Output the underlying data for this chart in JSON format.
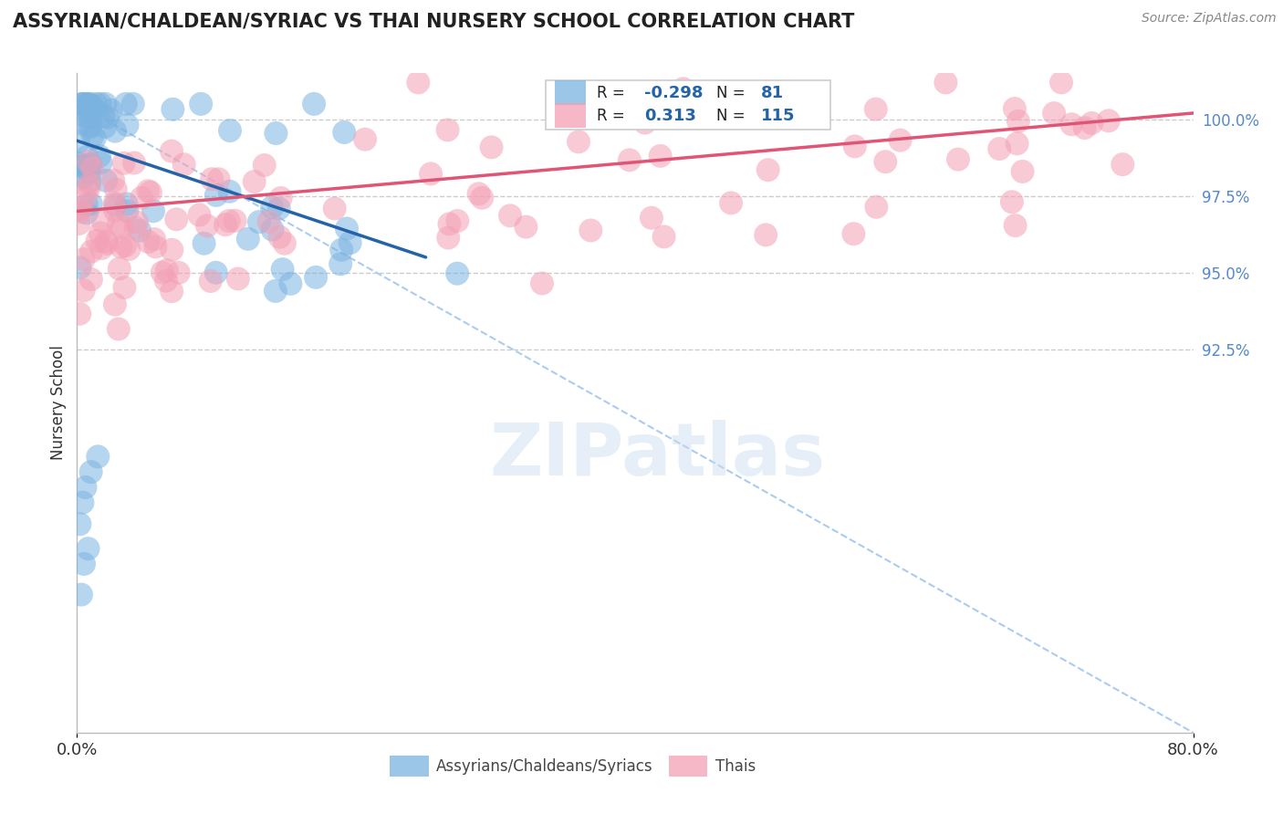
{
  "title": "ASSYRIAN/CHALDEAN/SYRIAC VS THAI NURSERY SCHOOL CORRELATION CHART",
  "source": "Source: ZipAtlas.com",
  "ylabel": "Nursery School",
  "xlim": [
    0.0,
    80.0
  ],
  "ylim": [
    80.0,
    101.5
  ],
  "blue_R": -0.298,
  "blue_N": 81,
  "pink_R": 0.313,
  "pink_N": 115,
  "blue_color": "#7ab3e0",
  "pink_color": "#f4a0b5",
  "blue_line_color": "#2563a8",
  "pink_line_color": "#e05575",
  "gray_line_color": "#aaccee",
  "legend_label_blue": "Assyrians/Chaldeans/Syriacs",
  "legend_label_pink": "Thais",
  "background": "#ffffff",
  "grid_color": "#cccccc",
  "y_ticks": [
    92.5,
    95.0,
    97.5,
    100.0
  ],
  "y_tick_labels": [
    "92.5%",
    "95.0%",
    "97.5%",
    "100.0%"
  ],
  "blue_line_x": [
    0.0,
    25.0
  ],
  "blue_line_y": [
    99.3,
    95.5
  ],
  "pink_line_x": [
    0.0,
    80.0
  ],
  "pink_line_y": [
    97.0,
    100.2
  ],
  "gray_line_x": [
    0.0,
    80.0
  ],
  "gray_line_y": [
    100.5,
    80.0
  ],
  "watermark": "ZIPatlas",
  "title_fontsize": 15,
  "tick_color": "#5588cc"
}
